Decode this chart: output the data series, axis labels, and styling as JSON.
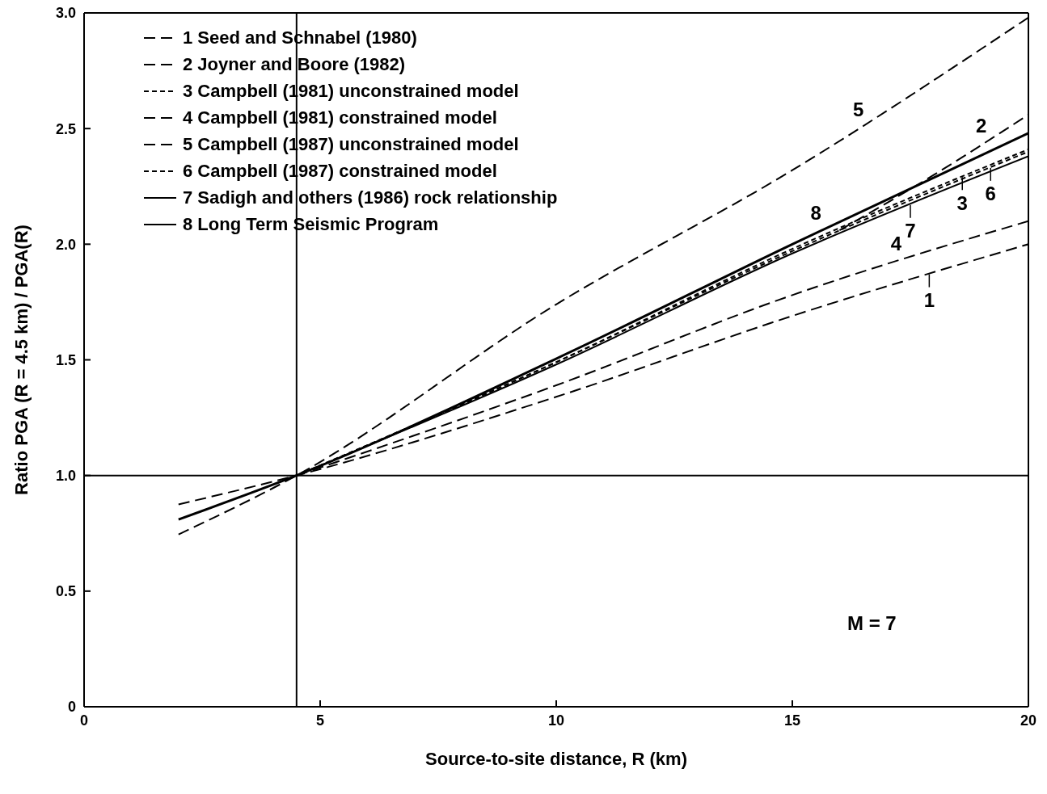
{
  "chart_data": {
    "type": "line",
    "xlabel": "Source-to-site distance, R (km)",
    "ylabel": "Ratio PGA (R = 4.5 km) / PGA(R)",
    "xlim": [
      0,
      20
    ],
    "xticks": [
      0,
      5,
      10,
      15,
      20
    ],
    "ylim": [
      0,
      3
    ],
    "yticks": [
      0,
      {
        "value": 0.5,
        "label": "0.5"
      },
      {
        "value": 1,
        "label": "1.0"
      },
      {
        "value": 1.5,
        "label": "1.5"
      },
      {
        "value": 2,
        "label": "2.0"
      },
      {
        "value": 2.5,
        "label": "2.5"
      },
      {
        "value": 3,
        "label": "3.0"
      }
    ],
    "grid": false,
    "legend": "top left",
    "marker": "none",
    "series": [
      {
        "name": "1 Seed and Schnabel (1980)",
        "color": "#000000",
        "line_style": "dashed",
        "x": [
          2,
          4.5,
          10,
          15,
          20
        ],
        "values": [
          0.875,
          1,
          1.34,
          1.69,
          2.0
        ]
      },
      {
        "name": "2 Joyner and Boore (1982)",
        "color": "#000000",
        "line_style": "dashed",
        "x": [
          16,
          18,
          20
        ],
        "values": [
          2.06,
          2.3,
          2.56
        ]
      },
      {
        "name": "3 Campbell (1981) unconstrained model",
        "color": "#000000",
        "line_style": "dotted",
        "x": [
          4.5,
          10,
          15,
          20
        ],
        "values": [
          1,
          1.49,
          1.98,
          2.41
        ]
      },
      {
        "name": "4 Campbell (1981) constrained model",
        "color": "#000000",
        "line_style": "dashed",
        "x": [
          4.5,
          10,
          15,
          20
        ],
        "values": [
          1,
          1.39,
          1.78,
          2.1
        ]
      },
      {
        "name": "5 Campbell (1987) unconstrained model",
        "color": "#000000",
        "line_style": "dashed",
        "x": [
          2,
          4.5,
          10,
          15,
          20
        ],
        "values": [
          0.745,
          1,
          1.74,
          2.32,
          2.98
        ]
      },
      {
        "name": "6 Campbell (1987) constrained model",
        "color": "#000000",
        "line_style": "dotted",
        "x": [
          4.5,
          10,
          15,
          20
        ],
        "values": [
          1,
          1.49,
          1.97,
          2.4
        ]
      },
      {
        "name": "7 Sadigh and others (1986) rock relationship",
        "color": "#000000",
        "line_style": "solid",
        "x": [
          4.5,
          10,
          15,
          20
        ],
        "values": [
          1,
          1.48,
          1.96,
          2.38
        ]
      },
      {
        "name": "8 Long Term Seismic Program",
        "color": "#000000",
        "line_style": "solid",
        "x": [
          2,
          4.5,
          10,
          15,
          20
        ],
        "values": [
          0.81,
          1,
          1.505,
          2.0,
          2.48
        ]
      }
    ],
    "ref_lines": [
      {
        "axis": "x",
        "value": 4.5,
        "color": "#000000",
        "line_style": "solid"
      },
      {
        "axis": "y",
        "value": 1,
        "color": "#000000",
        "line_style": "solid"
      }
    ],
    "annotations": [
      {
        "text": "5",
        "x": 16.4,
        "y": 2.5
      },
      {
        "text": "2",
        "x": 19,
        "y": 2.43
      },
      {
        "text": "8",
        "x": 15.5,
        "y": 2.05
      },
      {
        "text": "6",
        "x": 19.2,
        "y": 2.33
      },
      {
        "text": "3",
        "x": 18.6,
        "y": 2.29
      },
      {
        "text": "7",
        "x": 17.5,
        "y": 2.17
      },
      {
        "text": "4",
        "x": 17.2,
        "y": 1.92
      },
      {
        "text": "1",
        "x": 17.9,
        "y": 1.87
      },
      "M = 7"
    ]
  }
}
